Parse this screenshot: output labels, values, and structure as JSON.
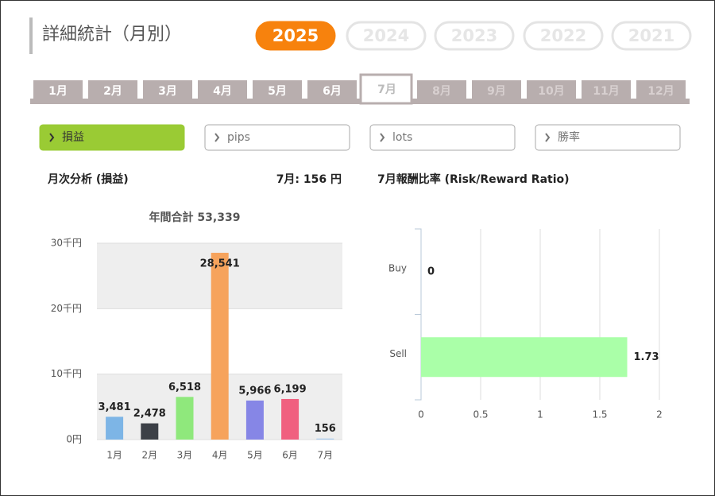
{
  "header": {
    "title": "詳細統計（月別）"
  },
  "years": [
    "2025",
    "2024",
    "2023",
    "2022",
    "2021"
  ],
  "active_year": 0,
  "months": [
    "1月",
    "2月",
    "3月",
    "4月",
    "5月",
    "6月",
    "7月",
    "8月",
    "9月",
    "10月",
    "11月",
    "12月"
  ],
  "active_month": 6,
  "tabs": [
    "損益",
    "pips",
    "lots",
    "勝率"
  ],
  "active_tab": 0,
  "left_panel": {
    "heading": "月次分析 (損益)",
    "summary": "7月:  156 円"
  },
  "right_panel": {
    "heading": "7月報酬比率 (Risk/Reward Ratio)"
  },
  "charts": [
    {
      "type": "bar",
      "title": "年間合計 53,339",
      "categories": [
        "1月",
        "2月",
        "3月",
        "4月",
        "5月",
        "6月",
        "7月"
      ],
      "values": [
        3481,
        2478,
        6518,
        28541,
        5966,
        6199,
        156
      ],
      "value_labels": [
        "3,481",
        "2,478",
        "6,518",
        "28,541",
        "5,966",
        "6,199",
        "156"
      ],
      "colors": [
        "#7db5e6",
        "#3c4047",
        "#8fe87c",
        "#f6a35c",
        "#8686e6",
        "#f0607f",
        "#a9c9ea"
      ],
      "ylim": [
        0,
        30000
      ],
      "yticks": [
        {
          "value": 0,
          "label": "0円"
        },
        {
          "value": 10000,
          "label": "10千円"
        },
        {
          "value": 20000,
          "label": "20千円"
        },
        {
          "value": 30000,
          "label": "30千円"
        }
      ],
      "grid": "bands"
    },
    {
      "type": "hbar",
      "categories": [
        "Buy",
        "Sell"
      ],
      "values": [
        0,
        1.73
      ],
      "color": "#aaffa8",
      "xlim": [
        0,
        2
      ],
      "xticks": [
        0,
        0.5,
        1,
        1.5,
        2
      ],
      "grid": true
    }
  ]
}
